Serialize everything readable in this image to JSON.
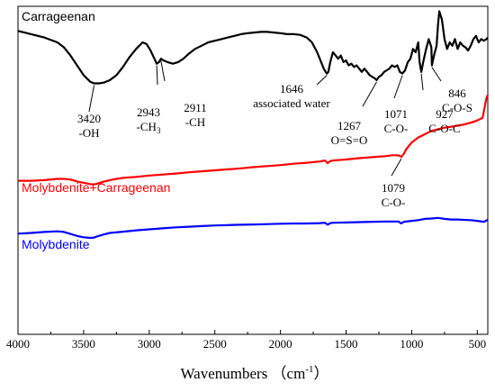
{
  "chart_data": {
    "type": "line",
    "xlabel": "Wavenumbers （cm",
    "xlabel_sup": "-1",
    "xlabel_close": "）",
    "xlim": [
      4000,
      420
    ],
    "xticks": [
      4000,
      3500,
      3000,
      2500,
      2000,
      1500,
      1000,
      500
    ],
    "ylim": [
      0,
      1
    ],
    "grid": false,
    "series": [
      {
        "name": "Carrageenan",
        "color": "#000000",
        "x": [
          4000,
          3900,
          3800,
          3700,
          3650,
          3600,
          3550,
          3500,
          3450,
          3420,
          3380,
          3340,
          3300,
          3250,
          3200,
          3150,
          3100,
          3050,
          3020,
          2990,
          2960,
          2943,
          2925,
          2911,
          2890,
          2860,
          2820,
          2780,
          2740,
          2700,
          2650,
          2600,
          2550,
          2500,
          2450,
          2400,
          2350,
          2300,
          2250,
          2200,
          2150,
          2100,
          2050,
          2000,
          1950,
          1900,
          1850,
          1800,
          1760,
          1720,
          1690,
          1670,
          1655,
          1646,
          1635,
          1620,
          1600,
          1580,
          1560,
          1540,
          1520,
          1500,
          1480,
          1460,
          1440,
          1420,
          1400,
          1380,
          1360,
          1340,
          1320,
          1300,
          1280,
          1267,
          1250,
          1230,
          1210,
          1190,
          1170,
          1150,
          1130,
          1110,
          1090,
          1071,
          1050,
          1030,
          1010,
          990,
          970,
          950,
          940,
          927,
          910,
          890,
          870,
          850,
          846,
          830,
          810,
          800,
          790,
          770,
          750,
          730,
          710,
          690,
          670,
          650,
          630,
          610,
          590,
          570,
          550,
          530,
          510,
          490,
          470,
          450,
          430,
          420
        ],
        "y": [
          0.925,
          0.915,
          0.905,
          0.89,
          0.875,
          0.85,
          0.82,
          0.79,
          0.77,
          0.765,
          0.765,
          0.768,
          0.775,
          0.79,
          0.815,
          0.845,
          0.87,
          0.89,
          0.885,
          0.865,
          0.84,
          0.825,
          0.83,
          0.84,
          0.835,
          0.83,
          0.825,
          0.83,
          0.84,
          0.855,
          0.87,
          0.88,
          0.89,
          0.895,
          0.9,
          0.905,
          0.91,
          0.915,
          0.918,
          0.92,
          0.922,
          0.922,
          0.92,
          0.918,
          0.915,
          0.915,
          0.913,
          0.905,
          0.89,
          0.86,
          0.83,
          0.81,
          0.8,
          0.795,
          0.8,
          0.83,
          0.86,
          0.85,
          0.84,
          0.85,
          0.83,
          0.835,
          0.82,
          0.825,
          0.815,
          0.82,
          0.81,
          0.8,
          0.81,
          0.8,
          0.79,
          0.785,
          0.78,
          0.775,
          0.785,
          0.79,
          0.8,
          0.805,
          0.81,
          0.82,
          0.815,
          0.82,
          0.8,
          0.795,
          0.805,
          0.83,
          0.84,
          0.87,
          0.86,
          0.89,
          0.83,
          0.8,
          0.835,
          0.87,
          0.9,
          0.875,
          0.82,
          0.85,
          0.88,
          0.94,
          0.985,
          0.96,
          0.9,
          0.87,
          0.89,
          0.88,
          0.9,
          0.87,
          0.89,
          0.88,
          0.875,
          0.865,
          0.88,
          0.9,
          0.91,
          0.89,
          0.9,
          0.895,
          0.9,
          0.905
        ]
      },
      {
        "name": "Molybdenite+Carrageenan",
        "color": "#ff0000",
        "x": [
          4000,
          3900,
          3800,
          3700,
          3650,
          3600,
          3550,
          3500,
          3450,
          3420,
          3400,
          3350,
          3300,
          3250,
          3200,
          3100,
          3000,
          2900,
          2800,
          2700,
          2600,
          2500,
          2400,
          2300,
          2200,
          2100,
          2000,
          1900,
          1800,
          1700,
          1660,
          1640,
          1620,
          1600,
          1500,
          1400,
          1300,
          1200,
          1150,
          1100,
          1079,
          1060,
          1040,
          1000,
          950,
          900,
          850,
          800,
          750,
          700,
          650,
          600,
          550,
          500,
          460,
          440,
          430,
          420
        ],
        "y": [
          0.468,
          0.468,
          0.47,
          0.474,
          0.474,
          0.472,
          0.466,
          0.462,
          0.458,
          0.457,
          0.459,
          0.465,
          0.47,
          0.474,
          0.477,
          0.48,
          0.484,
          0.487,
          0.49,
          0.494,
          0.497,
          0.5,
          0.503,
          0.506,
          0.51,
          0.513,
          0.516,
          0.52,
          0.523,
          0.527,
          0.53,
          0.522,
          0.528,
          0.53,
          0.533,
          0.537,
          0.54,
          0.543,
          0.546,
          0.546,
          0.541,
          0.55,
          0.565,
          0.585,
          0.6,
          0.61,
          0.62,
          0.625,
          0.63,
          0.633,
          0.636,
          0.64,
          0.645,
          0.652,
          0.66,
          0.7,
          0.72,
          0.73
        ]
      },
      {
        "name": "Molybdenite",
        "color": "#0000ff",
        "x": [
          4000,
          3900,
          3800,
          3700,
          3650,
          3600,
          3550,
          3500,
          3450,
          3420,
          3400,
          3350,
          3300,
          3200,
          3100,
          3000,
          2900,
          2800,
          2700,
          2600,
          2500,
          2400,
          2300,
          2200,
          2100,
          2000,
          1900,
          1800,
          1700,
          1660,
          1640,
          1620,
          1600,
          1500,
          1400,
          1300,
          1200,
          1100,
          1080,
          1060,
          1000,
          950,
          900,
          850,
          800,
          750,
          700,
          650,
          600,
          550,
          500,
          450,
          430,
          420
        ],
        "y": [
          0.307,
          0.309,
          0.312,
          0.314,
          0.312,
          0.306,
          0.3,
          0.296,
          0.294,
          0.295,
          0.298,
          0.304,
          0.309,
          0.313,
          0.317,
          0.32,
          0.323,
          0.326,
          0.328,
          0.33,
          0.332,
          0.333,
          0.334,
          0.335,
          0.336,
          0.337,
          0.338,
          0.338,
          0.339,
          0.34,
          0.334,
          0.339,
          0.34,
          0.341,
          0.342,
          0.343,
          0.344,
          0.344,
          0.338,
          0.343,
          0.346,
          0.348,
          0.352,
          0.353,
          0.355,
          0.352,
          0.35,
          0.35,
          0.349,
          0.348,
          0.346,
          0.343,
          0.347,
          0.35
        ]
      }
    ],
    "series_labels": [
      {
        "text": "Carrageenan",
        "color": "#000000"
      },
      {
        "text": "Molybdenite+Carrageenan",
        "color": "#ff0000"
      },
      {
        "text": "Molybdenite",
        "color": "#0000ff"
      }
    ],
    "annotations": [
      {
        "lines": [
          "3420",
          "-OH"
        ],
        "x": 3420,
        "y": 0.765
      },
      {
        "lines": [
          "2943",
          "-CH"
        ],
        "sub": "3",
        "x": 2943,
        "y": 0.825
      },
      {
        "lines": [
          "2911",
          "-CH"
        ],
        "x": 2911,
        "y": 0.84
      },
      {
        "lines": [
          "1646",
          "associated water"
        ],
        "x": 1646,
        "y": 0.795
      },
      {
        "lines": [
          "1267",
          "O=S=O"
        ],
        "x": 1267,
        "y": 0.775
      },
      {
        "lines": [
          "1071",
          "C-O-"
        ],
        "x": 1071,
        "y": 0.795
      },
      {
        "lines": [
          "927",
          "C-O-C"
        ],
        "x": 927,
        "y": 0.8
      },
      {
        "lines": [
          "846",
          "C-O-S"
        ],
        "x": 846,
        "y": 0.82
      },
      {
        "lines": [
          "1079",
          "C-O-"
        ],
        "x": 1079,
        "y": 0.541
      }
    ]
  }
}
